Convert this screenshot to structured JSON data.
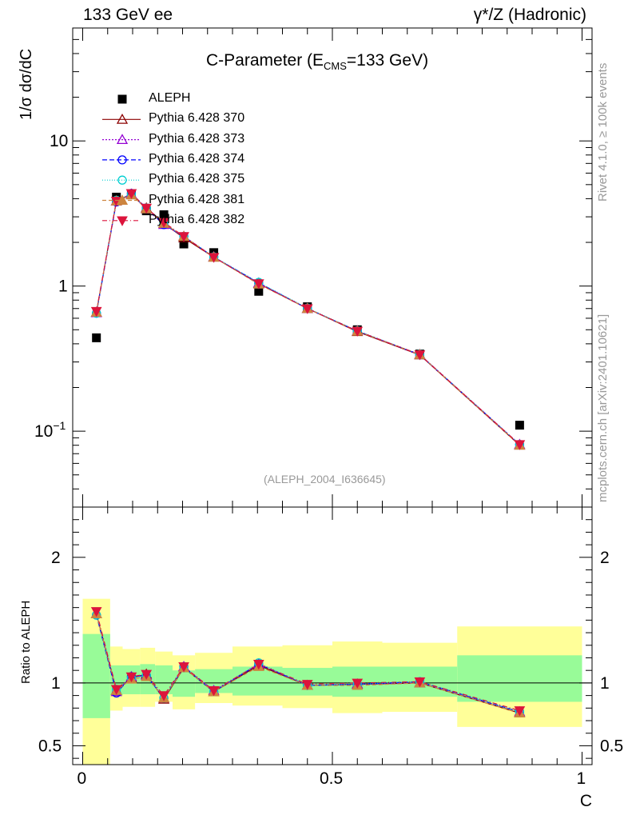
{
  "header": {
    "left_label": "133 GeV ee",
    "right_label": "γ*/Z (Hadronic)"
  },
  "side_labels": {
    "rivet": "Rivet 4.1.0, ≥ 100k events",
    "mcplots": "mcplots.cern.ch [arXiv:2401.10621]"
  },
  "chart_data": [
    {
      "type": "line",
      "panel": "main",
      "title_main": "C-Parameter (E",
      "title_sub": "CMS",
      "title_end": "=133 GeV)",
      "ylabel": "1/σ  dσ/dC",
      "yscale": "log",
      "ylim": [
        0.03,
        60
      ],
      "xlim": [
        -0.02,
        1.02
      ],
      "ytick_labels": [
        "10",
        "1"
      ],
      "ytick_exp": {
        "base": "10",
        "exp": "−1"
      },
      "analysis_tag": "(ALEPH_2004_I636645)",
      "data": {
        "name": "ALEPH",
        "x": [
          0.0275,
          0.0675,
          0.0975,
          0.1275,
          0.1625,
          0.2025,
          0.2625,
          0.3525,
          0.45,
          0.55,
          0.675,
          0.875
        ],
        "y": [
          0.44,
          4.1,
          4.3,
          3.3,
          3.1,
          1.95,
          1.7,
          0.92,
          0.72,
          0.5,
          0.34,
          0.11
        ]
      },
      "series": [
        {
          "name": "Pythia 6.428 370",
          "color": "#8b0000",
          "dash": "",
          "marker": "triangle-open",
          "x": [
            0.0275,
            0.0675,
            0.0975,
            0.1275,
            0.1625,
            0.2025,
            0.2625,
            0.3525,
            0.45,
            0.55,
            0.675,
            0.875
          ],
          "y": [
            0.66,
            3.85,
            4.25,
            3.45,
            2.7,
            2.15,
            1.58,
            1.04,
            0.7,
            0.485,
            0.335,
            0.08
          ]
        },
        {
          "name": "Pythia 6.428 373",
          "color": "#9400d3",
          "dash": "2,2",
          "marker": "triangle-open",
          "x": [
            0.0275,
            0.0675,
            0.0975,
            0.1275,
            0.1625,
            0.2025,
            0.2625,
            0.3525,
            0.45,
            0.55,
            0.675,
            0.875
          ],
          "y": [
            0.655,
            3.85,
            4.3,
            3.4,
            2.65,
            2.2,
            1.59,
            1.05,
            0.7,
            0.49,
            0.338,
            0.081
          ]
        },
        {
          "name": "Pythia 6.428 374",
          "color": "#0000ff",
          "dash": "6,3",
          "marker": "circle-open",
          "x": [
            0.0275,
            0.0675,
            0.0975,
            0.1275,
            0.1625,
            0.2025,
            0.2625,
            0.3525,
            0.45,
            0.55,
            0.675,
            0.875
          ],
          "y": [
            0.65,
            3.8,
            4.35,
            3.45,
            2.65,
            2.2,
            1.58,
            1.05,
            0.7,
            0.49,
            0.336,
            0.081
          ]
        },
        {
          "name": "Pythia 6.428 375",
          "color": "#00ced1",
          "dash": "1,2",
          "marker": "circle-open",
          "x": [
            0.0275,
            0.0675,
            0.0975,
            0.1275,
            0.1625,
            0.2025,
            0.2625,
            0.3525,
            0.45,
            0.55,
            0.675,
            0.875
          ],
          "y": [
            0.65,
            3.9,
            4.3,
            3.45,
            2.7,
            2.2,
            1.59,
            1.06,
            0.705,
            0.492,
            0.338,
            0.081
          ]
        },
        {
          "name": "Pythia 6.428 381",
          "color": "#cd853f",
          "dash": "5,3",
          "marker": "triangle-filled",
          "x": [
            0.0275,
            0.0675,
            0.0975,
            0.1275,
            0.1625,
            0.2025,
            0.2625,
            0.3525,
            0.45,
            0.55,
            0.675,
            0.875
          ],
          "y": [
            0.66,
            3.85,
            4.25,
            3.4,
            2.7,
            2.2,
            1.58,
            1.03,
            0.7,
            0.488,
            0.337,
            0.08
          ]
        },
        {
          "name": "Pythia 6.428 382",
          "color": "#dc143c",
          "dash": "6,3,1,3",
          "marker": "triangle-down-filled",
          "x": [
            0.0275,
            0.0675,
            0.0975,
            0.1275,
            0.1625,
            0.2025,
            0.2625,
            0.3525,
            0.45,
            0.55,
            0.675,
            0.875
          ],
          "y": [
            0.67,
            3.85,
            4.35,
            3.45,
            2.75,
            2.2,
            1.58,
            1.04,
            0.7,
            0.49,
            0.337,
            0.081
          ]
        }
      ]
    },
    {
      "type": "line",
      "panel": "ratio",
      "ylabel": "Ratio to ALEPH",
      "xlabel": "C",
      "ylim": [
        0.35,
        2.4
      ],
      "xlim": [
        -0.02,
        1.02
      ],
      "ytick_labels": [
        "2",
        "1",
        "0.5"
      ],
      "xtick_labels": [
        "0",
        "0.5",
        "1"
      ],
      "bands": {
        "edges": [
          0.0,
          0.055,
          0.08,
          0.115,
          0.145,
          0.18,
          0.225,
          0.3,
          0.4,
          0.5,
          0.6,
          0.75,
          1.0
        ],
        "inner_lo": [
          0.72,
          0.9,
          0.91,
          0.91,
          0.91,
          0.89,
          0.92,
          0.9,
          0.9,
          0.89,
          0.89,
          0.85
        ],
        "inner_hi": [
          1.39,
          1.14,
          1.14,
          1.15,
          1.14,
          1.1,
          1.11,
          1.13,
          1.12,
          1.13,
          1.13,
          1.22
        ],
        "outer_lo": [
          0.28,
          0.78,
          0.81,
          0.81,
          0.85,
          0.79,
          0.84,
          0.82,
          0.8,
          0.76,
          0.77,
          0.65
        ],
        "outer_hi": [
          1.67,
          1.29,
          1.27,
          1.28,
          1.25,
          1.22,
          1.24,
          1.29,
          1.3,
          1.33,
          1.32,
          1.45
        ]
      },
      "series": [
        {
          "name": "Pythia 6.428 370",
          "color": "#8b0000",
          "dash": "",
          "marker": "triangle-open",
          "x": [
            0.0275,
            0.0675,
            0.0975,
            0.1275,
            0.1625,
            0.2025,
            0.2625,
            0.3525,
            0.45,
            0.55,
            0.675,
            0.875
          ],
          "y": [
            1.55,
            0.94,
            1.04,
            1.07,
            0.87,
            1.12,
            0.93,
            1.14,
            0.98,
            0.99,
            1.0,
            0.76
          ]
        },
        {
          "name": "Pythia 6.428 373",
          "color": "#9400d3",
          "dash": "2,2",
          "marker": "triangle-open",
          "x": [
            0.0275,
            0.0675,
            0.0975,
            0.1275,
            0.1625,
            0.2025,
            0.2625,
            0.3525,
            0.45,
            0.55,
            0.675,
            0.875
          ],
          "y": [
            1.55,
            0.93,
            1.05,
            1.06,
            0.88,
            1.13,
            0.94,
            1.15,
            0.98,
            0.99,
            1.0,
            0.77
          ]
        },
        {
          "name": "Pythia 6.428 374",
          "color": "#0000ff",
          "dash": "6,3",
          "marker": "circle-open",
          "x": [
            0.0275,
            0.0675,
            0.0975,
            0.1275,
            0.1625,
            0.2025,
            0.2625,
            0.3525,
            0.45,
            0.55,
            0.675,
            0.875
          ],
          "y": [
            1.54,
            0.92,
            1.05,
            1.06,
            0.88,
            1.13,
            0.93,
            1.15,
            0.98,
            0.99,
            1.01,
            0.77
          ]
        },
        {
          "name": "Pythia 6.428 375",
          "color": "#00ced1",
          "dash": "1,2",
          "marker": "circle-open",
          "x": [
            0.0275,
            0.0675,
            0.0975,
            0.1275,
            0.1625,
            0.2025,
            0.2625,
            0.3525,
            0.45,
            0.55,
            0.675,
            0.875
          ],
          "y": [
            1.54,
            0.95,
            1.04,
            1.06,
            0.88,
            1.12,
            0.93,
            1.16,
            0.98,
            0.99,
            1.01,
            0.77
          ]
        },
        {
          "name": "Pythia 6.428 381",
          "color": "#cd853f",
          "dash": "5,3",
          "marker": "triangle-filled",
          "x": [
            0.0275,
            0.0675,
            0.0975,
            0.1275,
            0.1625,
            0.2025,
            0.2625,
            0.3525,
            0.45,
            0.55,
            0.675,
            0.875
          ],
          "y": [
            1.55,
            0.94,
            1.03,
            1.05,
            0.88,
            1.12,
            0.93,
            1.13,
            0.98,
            0.98,
            1.0,
            0.76
          ]
        },
        {
          "name": "Pythia 6.428 382",
          "color": "#dc143c",
          "dash": "6,3,1,3",
          "marker": "triangle-down-filled",
          "x": [
            0.0275,
            0.0675,
            0.0975,
            0.1275,
            0.1625,
            0.2025,
            0.2625,
            0.3525,
            0.45,
            0.55,
            0.675,
            0.875
          ],
          "y": [
            1.57,
            0.95,
            1.05,
            1.07,
            0.9,
            1.13,
            0.94,
            1.15,
            0.99,
            1.0,
            1.01,
            0.78
          ]
        }
      ]
    }
  ],
  "colors": {
    "inner_band": "#98fb98",
    "outer_band": "#ffff99",
    "data_marker": "#000000"
  }
}
